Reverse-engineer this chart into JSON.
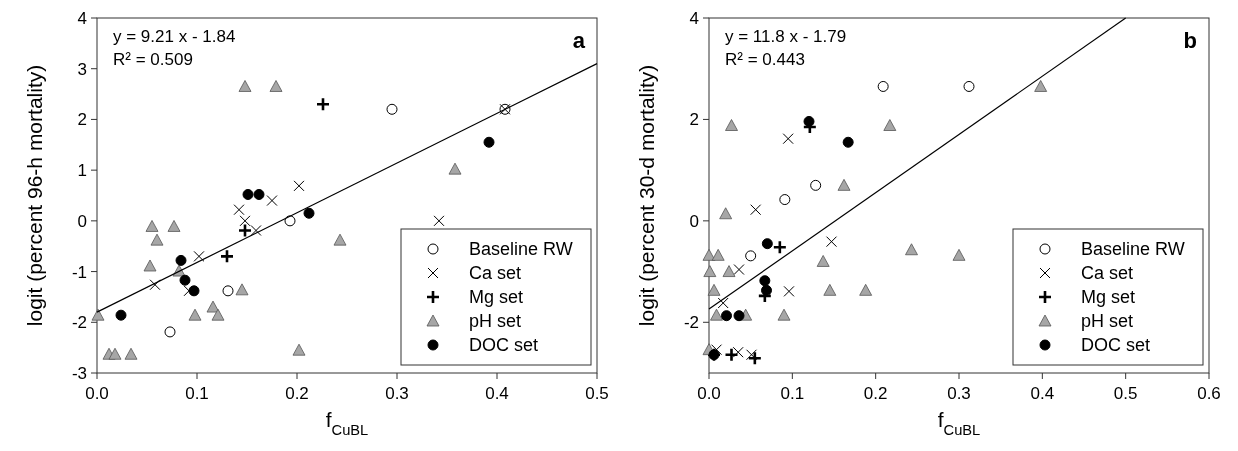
{
  "chart_data": [
    {
      "type": "scatter",
      "xlabel": "f$_{CuBL}$",
      "ylabel": "logit (percent 96-h mortality)",
      "annotations": [
        "y = 9.21 x - 1.84",
        "R² = 0.509",
        "a"
      ],
      "xlim": [
        0,
        0.5
      ],
      "ylim": [
        -3,
        4
      ],
      "xticks": [
        {
          "value": 0,
          "label": "0.0"
        },
        0.1,
        0.2,
        0.3,
        0.4,
        0.5
      ],
      "yticks": [
        -3,
        -2,
        -1,
        0,
        1,
        2,
        3,
        4
      ],
      "legend": "bottom right",
      "series": [
        {
          "name": "Baseline RW",
          "color": "#ffffff",
          "marker": "circle",
          "x": [
            0.295,
            0.408,
            0.193,
            0.131,
            0.073
          ],
          "values": [
            2.2,
            2.2,
            0,
            -1.38,
            -2.19
          ]
        },
        {
          "name": "Ca set",
          "color": "#000000",
          "marker": "cross",
          "x": [
            0.408,
            0.342,
            0.202,
            0.175,
            0.142,
            0.148,
            0.159,
            0.102,
            0.058,
            0.092
          ],
          "values": [
            2.2,
            0,
            0.69,
            0.4,
            0.22,
            0,
            -0.19,
            -0.7,
            -1.26,
            -1.38
          ]
        },
        {
          "name": "Mg set",
          "color": "#000000",
          "marker": "plus",
          "x": [
            0.226,
            0.148,
            0.13
          ],
          "values": [
            2.3,
            -0.19,
            -0.7
          ]
        },
        {
          "name": "pH set",
          "color": "#a6a6a6",
          "marker": "triangle",
          "x": [
            0.148,
            0.179,
            0.358,
            0.243,
            0.055,
            0.077,
            0.06,
            0.053,
            0.082,
            0.145,
            0.116,
            0.098,
            0.121,
            0.001,
            0.202,
            0.012,
            0.018,
            0.034
          ],
          "values": [
            2.65,
            2.65,
            1.02,
            -0.38,
            -0.11,
            -0.11,
            -0.38,
            -0.89,
            -0.99,
            -1.36,
            -1.7,
            -1.86,
            -1.86,
            -1.86,
            -2.55,
            -2.63,
            -2.63,
            -2.63
          ]
        },
        {
          "name": "DOC set",
          "color": "#000000",
          "marker": "circle",
          "x": [
            0.392,
            0.151,
            0.162,
            0.212,
            0.084,
            0.088,
            0.097,
            0.024
          ],
          "values": [
            1.55,
            0.52,
            0.52,
            0.15,
            -0.78,
            -1.17,
            -1.38,
            -1.86
          ]
        },
        {
          "type": "line",
          "color": "#000000",
          "marker": "none",
          "x": [
            0,
            0.5
          ],
          "values": [
            -1.8,
            3.1
          ]
        }
      ]
    },
    {
      "type": "scatter",
      "xlabel": "f$_{CuBL}$",
      "ylabel": "logit (percent 30-d mortality)",
      "annotations": [
        "y = 11.8 x - 1.79",
        "R² = 0.443",
        "b"
      ],
      "xlim": [
        0,
        0.6
      ],
      "ylim": [
        -3,
        4
      ],
      "xticks": [
        {
          "value": 0,
          "label": "0.0"
        },
        0.1,
        0.2,
        0.3,
        0.4,
        0.5,
        0.6
      ],
      "yticks": [
        -2,
        0,
        2,
        4
      ],
      "legend": "bottom right",
      "series": [
        {
          "name": "Baseline RW",
          "color": "#ffffff",
          "marker": "circle",
          "x": [
            0.209,
            0.312,
            0.128,
            0.091,
            0.05
          ],
          "values": [
            2.65,
            2.65,
            0.7,
            0.42,
            -0.69
          ]
        },
        {
          "name": "Ca set",
          "color": "#000000",
          "marker": "cross",
          "x": [
            0.095,
            0.056,
            0.147,
            0.036,
            0.096,
            0.017,
            0.035,
            0.009,
            0.051
          ],
          "values": [
            1.62,
            0.22,
            -0.41,
            -0.96,
            -1.39,
            -1.62,
            -2.59,
            -2.54,
            -2.64
          ]
        },
        {
          "name": "Mg set",
          "color": "#000000",
          "marker": "plus",
          "x": [
            0.121,
            0.085,
            0.067,
            0.027,
            0.055,
            0.006
          ],
          "values": [
            1.85,
            -0.52,
            -1.48,
            -2.64,
            -2.71,
            -2.64
          ]
        },
        {
          "name": "pH set",
          "color": "#a6a6a6",
          "marker": "triangle",
          "x": [
            0.398,
            0.027,
            0.217,
            0.162,
            0.02,
            0,
            0.011,
            0.243,
            0.3,
            0.137,
            0.001,
            0.024,
            0.006,
            0.145,
            0.188,
            0.009,
            0.044,
            0.09,
            0
          ],
          "values": [
            2.65,
            1.88,
            1.88,
            0.7,
            0.14,
            -0.68,
            -0.68,
            -0.57,
            -0.68,
            -0.8,
            -1,
            -1,
            -1.37,
            -1.37,
            -1.37,
            -1.86,
            -1.86,
            -1.86,
            -2.54
          ]
        },
        {
          "name": "DOC set",
          "color": "#000000",
          "marker": "circle",
          "x": [
            0.12,
            0.167,
            0.07,
            0.067,
            0.069,
            0.021,
            0.036,
            0.006
          ],
          "values": [
            1.96,
            1.55,
            -0.45,
            -1.18,
            -1.37,
            -1.87,
            -1.87,
            -2.64
          ]
        },
        {
          "type": "line",
          "color": "#000000",
          "marker": "none",
          "x": [
            0,
            0.5
          ],
          "values": [
            -1.74,
            4
          ]
        }
      ]
    }
  ]
}
